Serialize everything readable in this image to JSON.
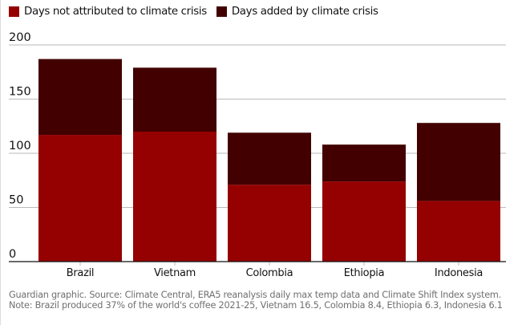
{
  "colors": {
    "not_attributed": "#950000",
    "added": "#420000",
    "grid": "#bababa",
    "axis": "#121212",
    "text": "#121212",
    "footnote": "#707070"
  },
  "legend": [
    {
      "label": "Days not attributed to climate crisis",
      "color": "#950000"
    },
    {
      "label": "Days added by climate crisis",
      "color": "#420000"
    }
  ],
  "footer": {
    "source": "Guardian graphic. Source: Climate Central, ERA5 reanalysis daily max temp data and Climate Shift Index system.",
    "note": "Note: Brazil produced 37% of the world's coffee 2021-25, Vietnam 16.5, Colombia 8.4, Ethiopia 6.3, Indonesia 6.1"
  },
  "chart_data": {
    "type": "bar",
    "stacked": true,
    "title": "",
    "xlabel": "",
    "ylabel": "",
    "categories": [
      "Brazil",
      "Vietnam",
      "Colombia",
      "Ethiopia",
      "Indonesia"
    ],
    "series": [
      {
        "name": "Days not attributed to climate crisis",
        "color": "#950000",
        "values": [
          117,
          120,
          71,
          74,
          56
        ]
      },
      {
        "name": "Days added by climate crisis",
        "color": "#420000",
        "values": [
          70,
          59,
          48,
          34,
          72
        ]
      }
    ],
    "totals": [
      187,
      179,
      119,
      108,
      128
    ],
    "ylim": [
      0,
      200
    ],
    "yticks": [
      0,
      50,
      100,
      150,
      200
    ],
    "grid": true,
    "legend_position": "top-left"
  }
}
